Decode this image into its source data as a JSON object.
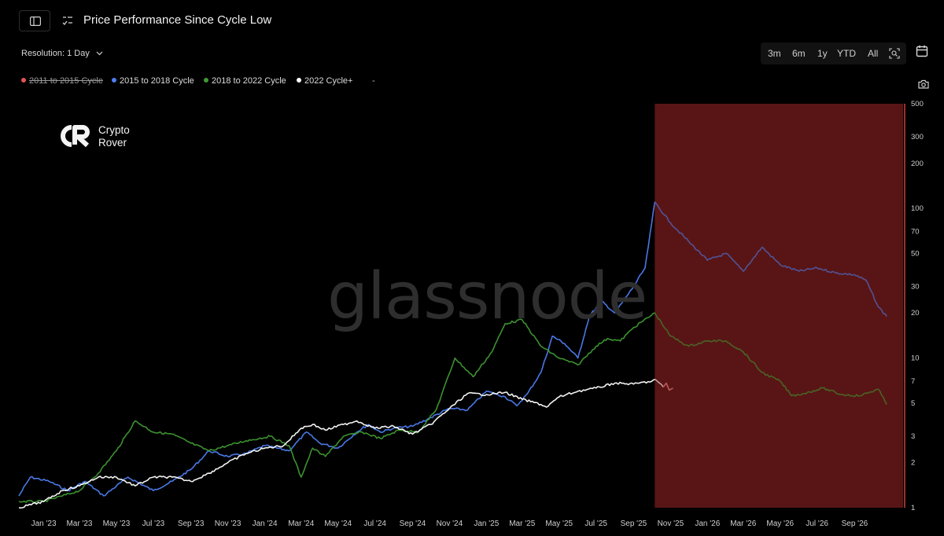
{
  "header": {
    "title": "Price Performance Since Cycle Low",
    "resolution_label": "Resolution: 1 Day"
  },
  "toolbar": {
    "range_buttons": [
      "3m",
      "6m",
      "1y",
      "YTD",
      "All"
    ]
  },
  "legend": {
    "items": [
      {
        "label": "2011 to 2015 Cycle",
        "color": "#e55353",
        "disabled": true
      },
      {
        "label": "2015 to 2018 Cycle",
        "color": "#4d7ef2",
        "disabled": false
      },
      {
        "label": "2018 to 2022 Cycle",
        "color": "#3f9a33",
        "disabled": false
      },
      {
        "label": "2022 Cycle+",
        "color": "#ffffff",
        "disabled": false
      }
    ],
    "trailing": "-"
  },
  "branding": {
    "logo_line1": "Crypto",
    "logo_line2": "Rover",
    "watermark": "glassnode"
  },
  "colors": {
    "background": "#000000",
    "highlight_band": "#5a1616",
    "band_edge": "#c8423a"
  },
  "chart_data": {
    "type": "line",
    "y_scale": "log",
    "ylim": [
      1,
      500
    ],
    "y_ticks": [
      1,
      2,
      3,
      5,
      7,
      10,
      20,
      30,
      50,
      70,
      100,
      200,
      300,
      500
    ],
    "x_range": [
      "2022-11-21",
      "2026-11-20"
    ],
    "x_ticks": [
      "Jan '23",
      "Mar '23",
      "May '23",
      "Jul '23",
      "Sep '23",
      "Nov '23",
      "Jan '24",
      "Mar '24",
      "May '24",
      "Jul '24",
      "Sep '24",
      "Nov '24",
      "Jan '25",
      "Mar '25",
      "May '25",
      "Jul '25",
      "Sep '25",
      "Nov '25",
      "Jan '26",
      "Mar '26",
      "May '26",
      "Jul '26",
      "Sep '26"
    ],
    "highlight_region": [
      "2025-10-06",
      "2026-11-20"
    ],
    "series": [
      {
        "name": "2015 to 2018 Cycle",
        "color": "#4d7ef2",
        "points": [
          [
            "2022-11-21",
            1.2
          ],
          [
            "2022-12-10",
            1.6
          ],
          [
            "2023-01-10",
            1.5
          ],
          [
            "2023-02-10",
            1.3
          ],
          [
            "2023-03-10",
            1.5
          ],
          [
            "2023-04-10",
            1.2
          ],
          [
            "2023-05-20",
            1.6
          ],
          [
            "2023-07-01",
            1.3
          ],
          [
            "2023-08-01",
            1.5
          ],
          [
            "2023-09-01",
            1.8
          ],
          [
            "2023-10-01",
            2.4
          ],
          [
            "2023-11-01",
            2.2
          ],
          [
            "2023-12-01",
            2.3
          ],
          [
            "2024-01-01",
            2.6
          ],
          [
            "2024-02-10",
            2.4
          ],
          [
            "2024-03-10",
            3.2
          ],
          [
            "2024-04-01",
            2.7
          ],
          [
            "2024-05-01",
            2.5
          ],
          [
            "2024-06-01",
            3.2
          ],
          [
            "2024-06-20",
            3.6
          ],
          [
            "2024-07-10",
            3.2
          ],
          [
            "2024-08-01",
            3.4
          ],
          [
            "2024-09-01",
            3.5
          ],
          [
            "2024-10-01",
            4.0
          ],
          [
            "2024-11-01",
            4.6
          ],
          [
            "2024-12-01",
            4.5
          ],
          [
            "2025-01-01",
            6.0
          ],
          [
            "2025-02-01",
            5.5
          ],
          [
            "2025-02-20",
            4.8
          ],
          [
            "2025-03-10",
            5.8
          ],
          [
            "2025-04-01",
            8.0
          ],
          [
            "2025-04-20",
            14.0
          ],
          [
            "2025-05-10",
            12.5
          ],
          [
            "2025-06-01",
            10.0
          ],
          [
            "2025-06-20",
            19.0
          ],
          [
            "2025-07-10",
            24.0
          ],
          [
            "2025-08-01",
            20.0
          ],
          [
            "2025-09-01",
            30.0
          ],
          [
            "2025-09-20",
            40.0
          ],
          [
            "2025-10-01",
            80.0
          ],
          [
            "2025-10-06",
            110.0
          ],
          [
            "2025-11-01",
            80.0
          ],
          [
            "2025-12-01",
            60.0
          ],
          [
            "2026-01-01",
            45.0
          ],
          [
            "2026-02-01",
            50.0
          ],
          [
            "2026-03-01",
            38.0
          ],
          [
            "2026-04-01",
            55.0
          ],
          [
            "2026-05-01",
            42.0
          ],
          [
            "2026-06-01",
            38.0
          ],
          [
            "2026-07-01",
            40.0
          ],
          [
            "2026-08-01",
            37.0
          ],
          [
            "2026-09-01",
            36.0
          ],
          [
            "2026-09-20",
            33.0
          ],
          [
            "2026-10-10",
            22.0
          ],
          [
            "2026-10-24",
            19.0
          ]
        ]
      },
      {
        "name": "2018 to 2022 Cycle",
        "color": "#3f9a33",
        "points": [
          [
            "2022-11-21",
            1.1
          ],
          [
            "2023-01-01",
            1.1
          ],
          [
            "2023-02-01",
            1.2
          ],
          [
            "2023-03-01",
            1.3
          ],
          [
            "2023-04-01",
            1.7
          ],
          [
            "2023-05-01",
            2.4
          ],
          [
            "2023-06-01",
            3.8
          ],
          [
            "2023-07-01",
            3.2
          ],
          [
            "2023-08-01",
            3.1
          ],
          [
            "2023-09-01",
            2.7
          ],
          [
            "2023-10-01",
            2.4
          ],
          [
            "2023-11-01",
            2.6
          ],
          [
            "2023-12-01",
            2.8
          ],
          [
            "2024-01-10",
            3.0
          ],
          [
            "2024-02-10",
            2.6
          ],
          [
            "2024-03-01",
            1.6
          ],
          [
            "2024-03-20",
            2.5
          ],
          [
            "2024-04-10",
            2.2
          ],
          [
            "2024-05-10",
            3.0
          ],
          [
            "2024-06-10",
            3.2
          ],
          [
            "2024-07-10",
            2.9
          ],
          [
            "2024-08-10",
            3.3
          ],
          [
            "2024-09-10",
            3.2
          ],
          [
            "2024-10-10",
            4.5
          ],
          [
            "2024-11-10",
            10.0
          ],
          [
            "2024-12-10",
            7.5
          ],
          [
            "2025-01-10",
            11.0
          ],
          [
            "2025-02-01",
            17.0
          ],
          [
            "2025-03-01",
            18.0
          ],
          [
            "2025-04-01",
            12.0
          ],
          [
            "2025-05-01",
            10.0
          ],
          [
            "2025-06-01",
            9.0
          ],
          [
            "2025-07-01",
            12.0
          ],
          [
            "2025-07-20",
            13.5
          ],
          [
            "2025-08-10",
            13.0
          ],
          [
            "2025-09-01",
            16.0
          ],
          [
            "2025-10-06",
            20.0
          ],
          [
            "2025-11-01",
            14.0
          ],
          [
            "2025-12-01",
            12.0
          ],
          [
            "2026-01-01",
            13.0
          ],
          [
            "2026-02-01",
            13.0
          ],
          [
            "2026-03-01",
            11.0
          ],
          [
            "2026-04-01",
            8.0
          ],
          [
            "2026-05-01",
            7.0
          ],
          [
            "2026-05-20",
            5.6
          ],
          [
            "2026-06-10",
            5.8
          ],
          [
            "2026-07-10",
            6.3
          ],
          [
            "2026-08-10",
            5.7
          ],
          [
            "2026-09-10",
            5.6
          ],
          [
            "2026-10-10",
            6.2
          ],
          [
            "2026-10-24",
            4.9
          ]
        ]
      },
      {
        "name": "2022 Cycle+",
        "color": "#ffffff",
        "points": [
          [
            "2022-11-21",
            1.0
          ],
          [
            "2023-01-01",
            1.1
          ],
          [
            "2023-02-01",
            1.3
          ],
          [
            "2023-03-01",
            1.4
          ],
          [
            "2023-04-01",
            1.6
          ],
          [
            "2023-05-01",
            1.6
          ],
          [
            "2023-06-01",
            1.4
          ],
          [
            "2023-07-01",
            1.6
          ],
          [
            "2023-08-01",
            1.6
          ],
          [
            "2023-09-01",
            1.5
          ],
          [
            "2023-10-01",
            1.7
          ],
          [
            "2023-11-01",
            2.0
          ],
          [
            "2023-12-01",
            2.3
          ],
          [
            "2024-01-01",
            2.5
          ],
          [
            "2024-02-01",
            2.6
          ],
          [
            "2024-03-01",
            3.4
          ],
          [
            "2024-03-20",
            3.6
          ],
          [
            "2024-04-10",
            3.3
          ],
          [
            "2024-05-10",
            3.6
          ],
          [
            "2024-06-01",
            3.8
          ],
          [
            "2024-07-01",
            3.4
          ],
          [
            "2024-08-01",
            3.5
          ],
          [
            "2024-09-01",
            3.1
          ],
          [
            "2024-10-01",
            3.6
          ],
          [
            "2024-11-01",
            4.6
          ],
          [
            "2024-12-01",
            5.8
          ],
          [
            "2025-01-01",
            5.7
          ],
          [
            "2025-02-01",
            5.9
          ],
          [
            "2025-03-01",
            5.3
          ],
          [
            "2025-04-01",
            4.9
          ],
          [
            "2025-04-10",
            4.7
          ],
          [
            "2025-05-01",
            5.5
          ],
          [
            "2025-06-01",
            6.0
          ],
          [
            "2025-07-01",
            6.3
          ],
          [
            "2025-08-01",
            6.8
          ],
          [
            "2025-09-01",
            6.7
          ],
          [
            "2025-10-01",
            7.0
          ],
          [
            "2025-10-06",
            7.2
          ],
          [
            "2025-10-20",
            6.4
          ]
        ]
      },
      {
        "name": "2022 Cycle+ (projection)",
        "color": "#ff8a8a",
        "points": [
          [
            "2025-10-20",
            6.4
          ],
          [
            "2025-10-25",
            6.8
          ],
          [
            "2025-10-30",
            6.1
          ],
          [
            "2025-11-05",
            6.3
          ]
        ]
      }
    ]
  }
}
